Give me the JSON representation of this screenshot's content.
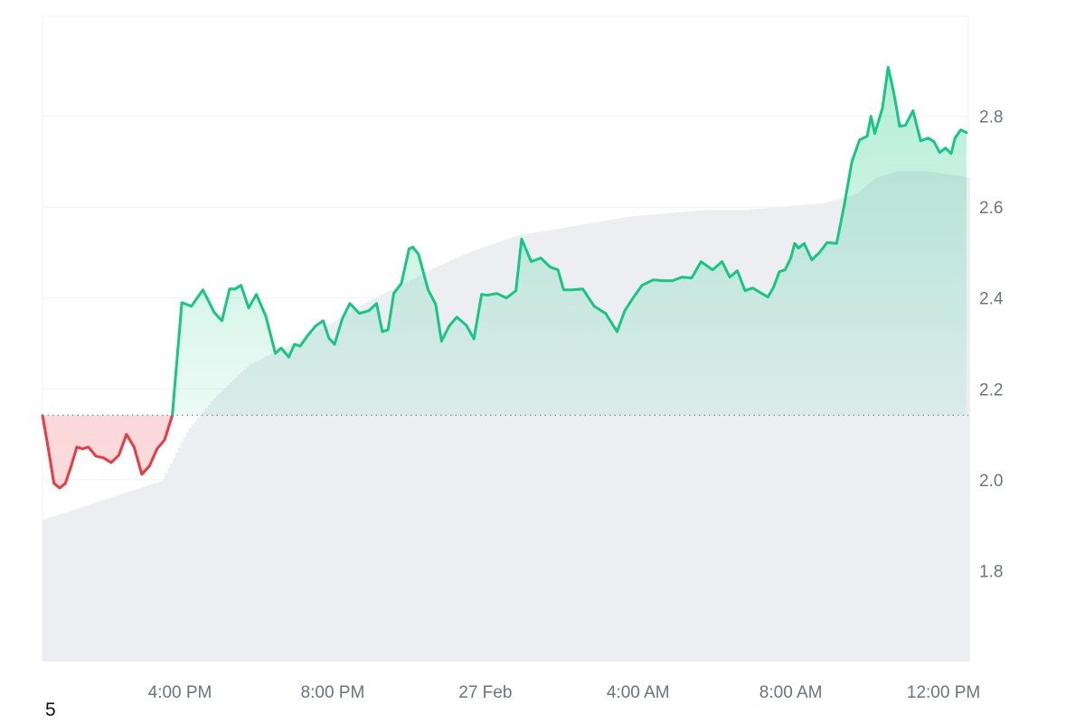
{
  "chart_data": {
    "type": "area",
    "title": "",
    "xlabel": "",
    "ylabel": "",
    "ylim": [
      1.6,
      3.02
    ],
    "baseline": 2.142,
    "y_ticks": [
      1.8,
      2.0,
      2.2,
      2.4,
      2.6,
      2.8
    ],
    "x_ticks": [
      "4:00 PM",
      "8:00 PM",
      "27 Feb",
      "4:00 AM",
      "8:00 AM",
      "12:00 PM"
    ],
    "x_tick_hours": [
      4,
      8,
      12,
      16,
      20,
      24
    ],
    "x_range_hours": [
      0.4,
      24.65
    ],
    "grid": true,
    "colors": {
      "up": "#16c784",
      "down": "#ea3943",
      "baseline": "#8a9099",
      "grid": "#eff1f3",
      "volume": "#eceef2"
    },
    "series": [
      {
        "x": [
          0.4,
          0.55,
          0.7,
          0.85,
          1.0,
          1.15,
          1.3,
          1.45,
          1.6,
          1.8,
          2.0,
          2.2,
          2.4,
          2.6,
          2.8,
          3.0,
          3.2,
          3.4,
          3.6,
          3.8,
          4.05,
          4.3,
          4.6,
          4.9,
          5.1,
          5.3,
          5.45,
          5.6,
          5.8,
          6.0,
          6.25,
          6.5,
          6.65,
          6.85,
          7.0,
          7.15,
          7.35,
          7.55,
          7.75,
          7.9,
          8.05,
          8.25,
          8.45,
          8.7,
          8.95,
          9.15,
          9.3,
          9.45,
          9.6,
          9.8,
          10.0,
          10.1,
          10.25,
          10.5,
          10.7,
          10.85,
          11.05,
          11.25,
          11.5,
          11.7,
          11.9,
          12.05,
          12.3,
          12.55,
          12.8,
          12.95,
          13.2,
          13.45,
          13.7,
          13.9,
          14.05,
          14.25,
          14.55,
          14.85,
          15.15,
          15.45,
          15.65,
          15.85,
          16.1,
          16.4,
          16.65,
          16.9,
          17.15,
          17.4,
          17.65,
          17.95,
          18.2,
          18.4,
          18.6,
          18.8,
          19.0,
          19.2,
          19.4,
          19.55,
          19.7,
          19.85,
          20.0,
          20.1,
          20.2,
          20.35,
          20.55,
          20.75,
          20.95,
          21.2,
          21.4,
          21.6,
          21.8,
          22.0,
          22.1,
          22.2,
          22.4,
          22.55,
          22.7,
          22.85,
          23.0,
          23.2,
          23.4,
          23.6,
          23.75,
          23.9,
          24.05,
          24.2,
          24.3,
          24.45,
          24.6
        ],
        "y": [
          2.142,
          2.07,
          1.992,
          1.982,
          1.992,
          2.03,
          2.072,
          2.068,
          2.072,
          2.052,
          2.048,
          2.038,
          2.054,
          2.1,
          2.072,
          2.012,
          2.03,
          2.068,
          2.088,
          2.142,
          2.39,
          2.382,
          2.418,
          2.368,
          2.35,
          2.42,
          2.42,
          2.428,
          2.378,
          2.408,
          2.36,
          2.278,
          2.29,
          2.27,
          2.298,
          2.294,
          2.318,
          2.338,
          2.35,
          2.312,
          2.298,
          2.354,
          2.388,
          2.366,
          2.372,
          2.388,
          2.326,
          2.33,
          2.41,
          2.432,
          2.508,
          2.512,
          2.496,
          2.418,
          2.386,
          2.305,
          2.338,
          2.358,
          2.34,
          2.31,
          2.408,
          2.406,
          2.41,
          2.4,
          2.416,
          2.53,
          2.48,
          2.488,
          2.468,
          2.462,
          2.418,
          2.418,
          2.42,
          2.382,
          2.366,
          2.326,
          2.372,
          2.398,
          2.428,
          2.44,
          2.438,
          2.438,
          2.446,
          2.444,
          2.48,
          2.462,
          2.48,
          2.446,
          2.46,
          2.416,
          2.422,
          2.412,
          2.402,
          2.424,
          2.458,
          2.462,
          2.488,
          2.52,
          2.51,
          2.52,
          2.484,
          2.5,
          2.522,
          2.52,
          2.605,
          2.7,
          2.748,
          2.756,
          2.8,
          2.762,
          2.818,
          2.908,
          2.85,
          2.778,
          2.78,
          2.812,
          2.746,
          2.752,
          2.744,
          2.72,
          2.73,
          2.718,
          2.752,
          2.77,
          2.764
        ]
      }
    ],
    "volume": {
      "x_hours": [
        0.4,
        3.5,
        4.2,
        4.9,
        5.8,
        6.8,
        7.8,
        8.8,
        9.8,
        10.8,
        11.8,
        12.8,
        13.8,
        14.8,
        15.8,
        16.8,
        17.8,
        18.8,
        19.8,
        20.8,
        21.7,
        22.2,
        22.8,
        23.5,
        24.65
      ],
      "values": [
        0.044,
        0.056,
        0.072,
        0.082,
        0.092,
        0.098,
        0.104,
        0.111,
        0.117,
        0.123,
        0.128,
        0.132,
        0.134,
        0.136,
        0.138,
        0.139,
        0.14,
        0.14,
        0.141,
        0.142,
        0.145,
        0.15,
        0.152,
        0.152,
        0.15
      ],
      "max": 0.2
    }
  },
  "footnote": "5"
}
